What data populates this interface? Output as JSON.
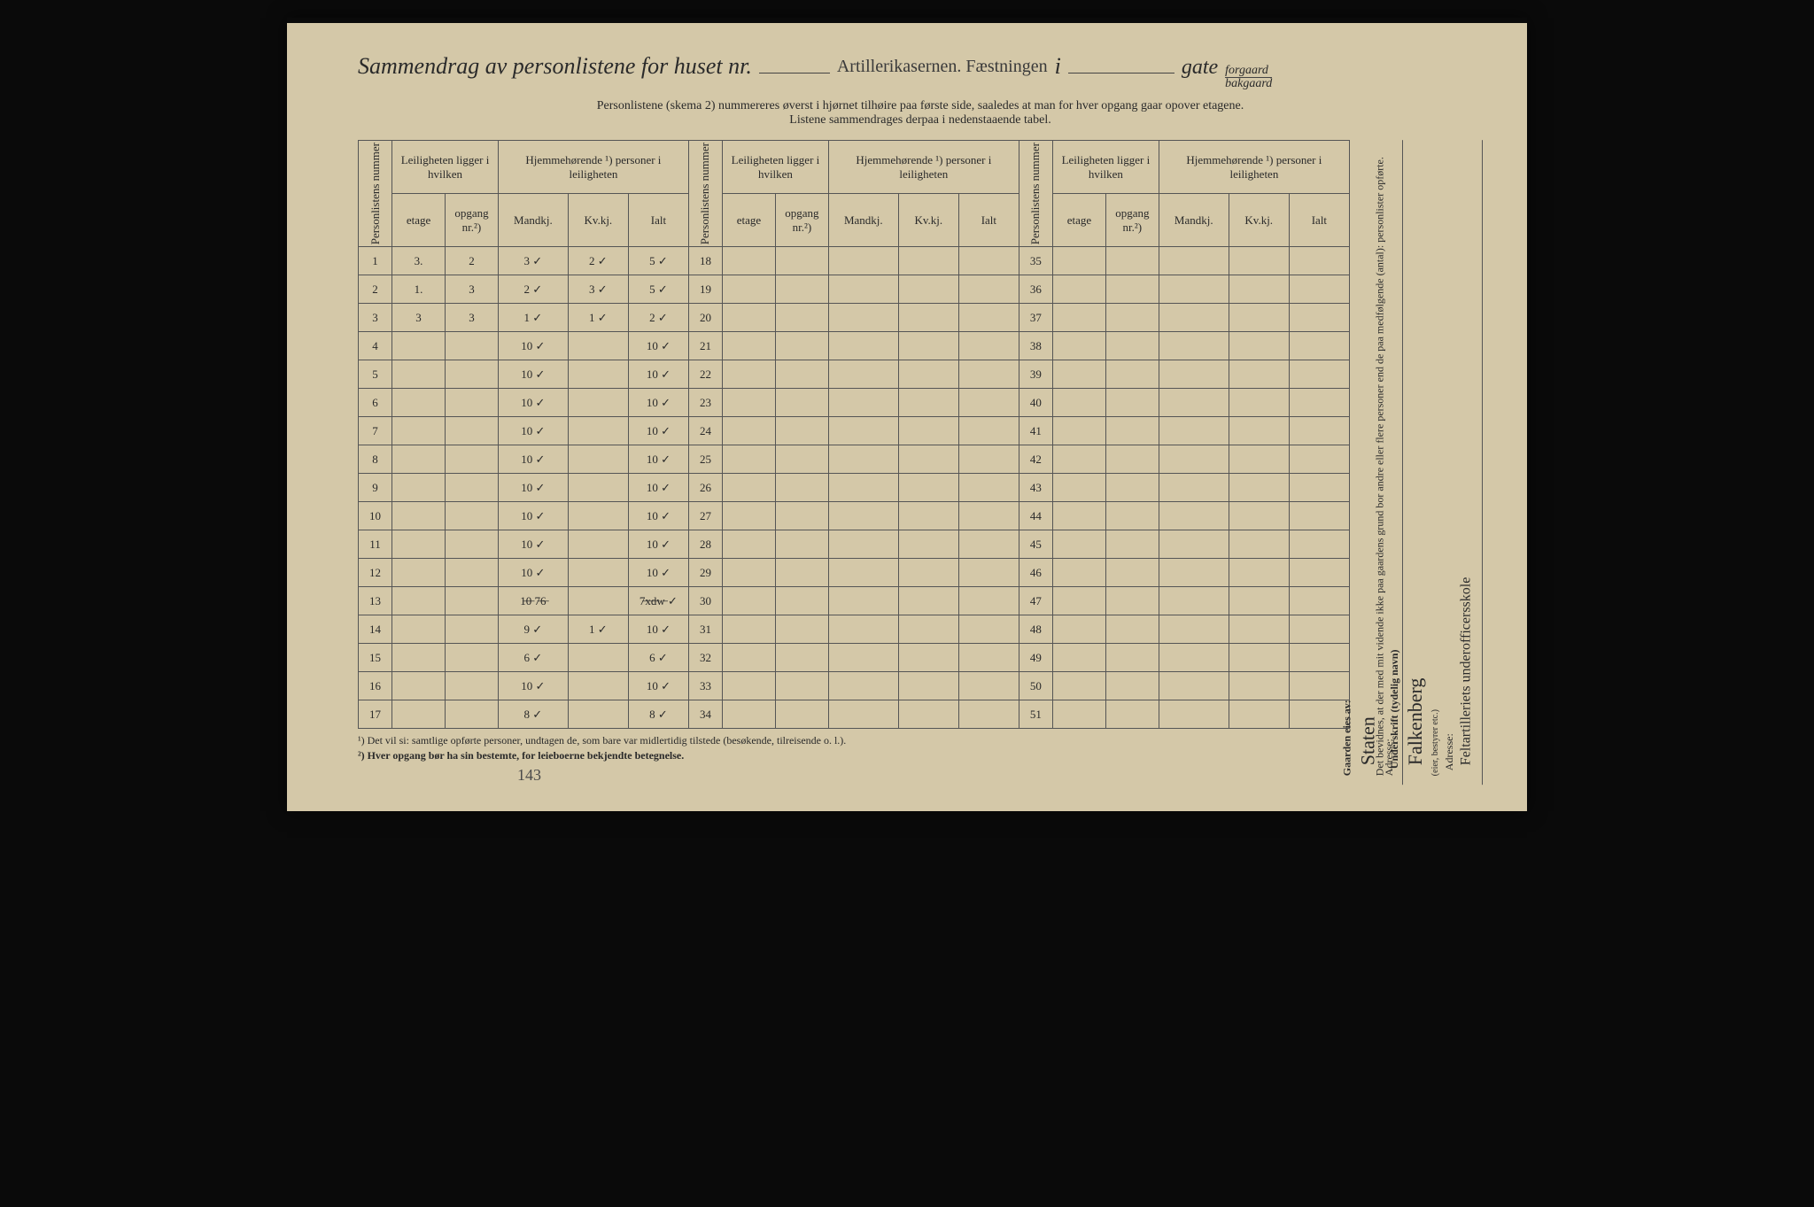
{
  "title": {
    "main": "Sammendrag av personlistene for huset nr.",
    "handwritten_location": "Artillerikasernen. Fæstningen",
    "i_separator": "i",
    "gate": "gate",
    "forgaard": "forgaard",
    "bakgaard": "bakgaard"
  },
  "instruction_line1": "Personlistene (skema 2) nummereres øverst i hjørnet tilhøire paa første side, saaledes at man for hver opgang gaar opover etagene.",
  "instruction_line2": "Listene sammendrages derpaa i nedenstaaende tabel.",
  "headers": {
    "personlistens_nummer": "Personlistens nummer",
    "leiligheten_group": "Leiligheten ligger i hvilken",
    "hjemme_group": "Hjemmehørende ¹) personer i leiligheten",
    "etage": "etage",
    "opgang": "opgang nr.²)",
    "mandkj": "Mandkj.",
    "kvkj": "Kv.kj.",
    "ialt": "Ialt"
  },
  "rows_block1": [
    {
      "n": "1",
      "etage": "3.",
      "opg": "2",
      "m": "3 ✓",
      "k": "2 ✓",
      "i": "5 ✓"
    },
    {
      "n": "2",
      "etage": "1.",
      "opg": "3",
      "m": "2 ✓",
      "k": "3 ✓",
      "i": "5 ✓"
    },
    {
      "n": "3",
      "etage": "3",
      "opg": "3",
      "m": "1 ✓",
      "k": "1 ✓",
      "i": "2 ✓"
    },
    {
      "n": "4",
      "etage": "",
      "opg": "",
      "m": "10 ✓",
      "k": "",
      "i": "10 ✓"
    },
    {
      "n": "5",
      "etage": "",
      "opg": "",
      "m": "10 ✓",
      "k": "",
      "i": "10 ✓"
    },
    {
      "n": "6",
      "etage": "",
      "opg": "",
      "m": "10 ✓",
      "k": "",
      "i": "10 ✓"
    },
    {
      "n": "7",
      "etage": "",
      "opg": "",
      "m": "10 ✓",
      "k": "",
      "i": "10 ✓"
    },
    {
      "n": "8",
      "etage": "",
      "opg": "",
      "m": "10 ✓",
      "k": "",
      "i": "10 ✓"
    },
    {
      "n": "9",
      "etage": "",
      "opg": "",
      "m": "10 ✓",
      "k": "",
      "i": "10 ✓"
    },
    {
      "n": "10",
      "etage": "",
      "opg": "",
      "m": "10 ✓",
      "k": "",
      "i": "10 ✓"
    },
    {
      "n": "11",
      "etage": "",
      "opg": "",
      "m": "10 ✓",
      "k": "",
      "i": "10 ✓"
    },
    {
      "n": "12",
      "etage": "",
      "opg": "",
      "m": "10 ✓",
      "k": "",
      "i": "10 ✓"
    },
    {
      "n": "13",
      "etage": "",
      "opg": "",
      "m": "1̶0̶ 7̶6̶",
      "k": "",
      "i": "7̶x̶d̶w̶ ✓"
    },
    {
      "n": "14",
      "etage": "",
      "opg": "",
      "m": "9 ✓",
      "k": "1 ✓",
      "i": "10 ✓"
    },
    {
      "n": "15",
      "etage": "",
      "opg": "",
      "m": "6 ✓",
      "k": "",
      "i": "6 ✓"
    },
    {
      "n": "16",
      "etage": "",
      "opg": "",
      "m": "10 ✓",
      "k": "",
      "i": "10 ✓"
    },
    {
      "n": "17",
      "etage": "",
      "opg": "",
      "m": "8 ✓",
      "k": "",
      "i": "8 ✓"
    }
  ],
  "rows_block2_start": 18,
  "rows_block2_end": 34,
  "rows_block3_start": 35,
  "rows_block3_end": 51,
  "footnotes": {
    "fn1": "¹)   Det vil si: samtlige opførte personer, undtagen de, som bare var midlertidig tilstede (besøkende, tilreisende o. l.).",
    "fn2": "²)   Hver opgang bør ha sin bestemte, for leieboerne bekjendte betegnelse."
  },
  "bottom_handnote": "143",
  "side_right": {
    "gaarden_eies": "Gaarden eies av:",
    "owner_hand": "Staten",
    "adresse_label": "Adresse:"
  },
  "side_far_right": {
    "declaration": "Det bevidnes, at der med mit vidende ikke paa gaardens grund bor andre eller flere personer end de paa medfølgende (antal): personlister opførte.",
    "underskrift_label": "Underskrift (tydelig navn)",
    "signature_hand": "Falkenberg",
    "eier_note": "(eier, bestyrer etc.)",
    "adresse_label": "Adresse:",
    "adresse_hand": "Feltartilleriets underofficersskole"
  },
  "styling": {
    "paper_bg": "#d4c8a8",
    "ink": "#2a2a2a",
    "border": "#555",
    "handwriting_color": "#2a2a2a",
    "title_fontsize": 26,
    "body_fontsize": 13
  }
}
